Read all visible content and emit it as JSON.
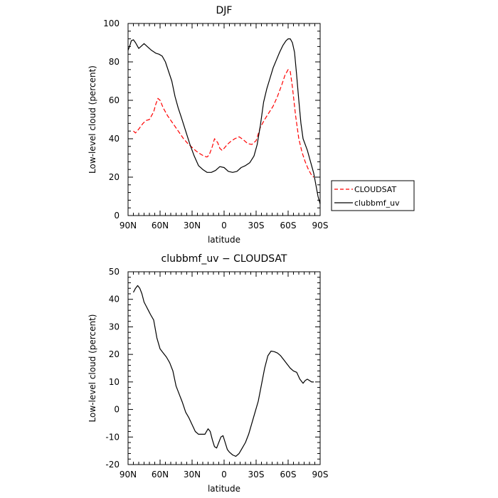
{
  "chart_data": [
    {
      "type": "line",
      "title": "DJF",
      "xlabel": "latitude",
      "ylabel": "Low-level cloud (percent)",
      "xlim": [
        -90,
        90
      ],
      "ylim": [
        0,
        100
      ],
      "x_ticks": [
        -90,
        -60,
        -30,
        0,
        30,
        60,
        90
      ],
      "x_tick_labels": [
        "90N",
        "60N",
        "30N",
        "0",
        "30S",
        "60S",
        "90S"
      ],
      "y_ticks": [
        0,
        20,
        40,
        60,
        80,
        100
      ],
      "legend_position": "right, outside plot",
      "series": [
        {
          "name": "CLOUDSAT",
          "color": "#ff0000",
          "dash": "dashed",
          "x": [
            -85,
            -83,
            -80,
            -76,
            -73,
            -70,
            -66,
            -64,
            -62,
            -60,
            -57,
            -53,
            -48,
            -43,
            -38,
            -34,
            -30,
            -26,
            -22,
            -19,
            -16,
            -14,
            -11,
            -9,
            -6,
            -4,
            -2,
            0,
            3,
            6,
            10,
            14,
            18,
            22,
            26,
            30,
            34,
            38,
            42,
            46,
            50,
            54,
            57,
            60,
            62,
            64,
            67,
            70,
            73,
            76,
            79,
            82,
            84
          ],
          "y": [
            44,
            43,
            45,
            48,
            49.5,
            50,
            54,
            58,
            61,
            60,
            56,
            52,
            48,
            44,
            40,
            37.5,
            35.5,
            33.5,
            32,
            31,
            30.5,
            31.5,
            36,
            40,
            38,
            35,
            34,
            35,
            37,
            38.5,
            40,
            41,
            39.5,
            37.5,
            37,
            39,
            46,
            50,
            53.5,
            57,
            62,
            68,
            73,
            76,
            75,
            67,
            52,
            40,
            33,
            28,
            24,
            21,
            20
          ]
        },
        {
          "name": "clubbmf_uv",
          "color": "#000000",
          "dash": "solid",
          "x": [
            -90,
            -88,
            -87,
            -85,
            -83,
            -80,
            -78,
            -75,
            -72,
            -68,
            -64,
            -61,
            -58,
            -55,
            -52,
            -49,
            -46,
            -43,
            -40,
            -36,
            -32,
            -28,
            -24,
            -20,
            -16,
            -12,
            -8,
            -4,
            0,
            4,
            8,
            12,
            16,
            20,
            24,
            28,
            31,
            34,
            37,
            40,
            43,
            46,
            49,
            52,
            55,
            58,
            60,
            62,
            64,
            66,
            68,
            70,
            72,
            74,
            76,
            78,
            80,
            82,
            84,
            86,
            88,
            90
          ],
          "y": [
            86,
            89,
            91,
            91.5,
            90,
            87,
            88,
            89.5,
            88,
            86,
            84.5,
            84,
            83,
            80,
            75,
            70,
            62,
            56,
            51,
            44,
            37,
            31,
            26,
            24,
            22.5,
            22.5,
            23.5,
            25.5,
            25,
            23,
            22.5,
            23,
            25,
            26,
            27.5,
            31,
            37,
            47,
            59,
            66,
            71.5,
            77,
            81,
            85,
            88.5,
            91,
            92,
            92,
            90,
            85,
            73,
            60,
            48,
            40,
            37,
            34,
            30,
            26,
            22,
            16,
            10,
            6
          ]
        }
      ]
    },
    {
      "type": "line",
      "title": "clubbmf_uv − CLOUDSAT",
      "xlabel": "latitude",
      "ylabel": "Low-level cloud (percent)",
      "xlim": [
        -90,
        90
      ],
      "ylim": [
        -20,
        50
      ],
      "x_ticks": [
        -90,
        -60,
        -30,
        0,
        30,
        60,
        90
      ],
      "x_tick_labels": [
        "90N",
        "60N",
        "30N",
        "0",
        "30S",
        "60S",
        "90S"
      ],
      "y_ticks": [
        -20,
        -10,
        0,
        10,
        20,
        30,
        40,
        50
      ],
      "series": [
        {
          "color": "#000000",
          "dash": "solid",
          "x": [
            -85,
            -83,
            -81,
            -79,
            -77,
            -75,
            -73,
            -71,
            -69,
            -66,
            -63,
            -60,
            -57,
            -54,
            -51,
            -48,
            -45,
            -42,
            -39,
            -36,
            -33,
            -30,
            -27,
            -24,
            -21,
            -18,
            -15,
            -13,
            -11,
            -9,
            -7,
            -5,
            -3,
            -1,
            1,
            3,
            5,
            8,
            11,
            14,
            17,
            20,
            23,
            26,
            29,
            32,
            35,
            38,
            41,
            44,
            47,
            50,
            53,
            56,
            59,
            62,
            65,
            68,
            71,
            74,
            76,
            78,
            80,
            82,
            84
          ],
          "y": [
            42.5,
            44,
            45,
            44,
            42,
            39,
            37.5,
            36,
            34.5,
            32.5,
            26,
            22,
            20.5,
            19,
            17,
            14,
            8.5,
            5.5,
            2.5,
            -1,
            -3,
            -5.5,
            -8,
            -9,
            -9,
            -9,
            -7,
            -8,
            -11,
            -13.5,
            -14,
            -12,
            -10,
            -9.5,
            -12,
            -14.5,
            -15.5,
            -16.5,
            -17,
            -16,
            -14,
            -12,
            -9,
            -5,
            -1,
            3,
            9,
            15,
            19.5,
            21.2,
            21,
            20.5,
            19.5,
            18,
            16.5,
            15,
            14,
            13.5,
            11,
            9.5,
            10.5,
            11,
            10.5,
            10,
            10
          ]
        }
      ]
    }
  ]
}
